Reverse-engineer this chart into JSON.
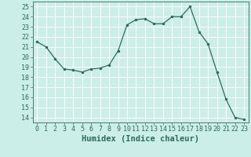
{
  "x": [
    0,
    1,
    2,
    3,
    4,
    5,
    6,
    7,
    8,
    9,
    10,
    11,
    12,
    13,
    14,
    15,
    16,
    17,
    18,
    19,
    20,
    21,
    22,
    23
  ],
  "y": [
    21.5,
    21.0,
    19.8,
    18.8,
    18.7,
    18.5,
    18.8,
    18.9,
    19.2,
    20.6,
    23.2,
    23.7,
    23.8,
    23.3,
    23.3,
    24.0,
    24.0,
    25.0,
    22.5,
    21.3,
    18.5,
    15.8,
    14.0,
    13.8
  ],
  "line_color": "#2e6b5e",
  "marker": ".",
  "marker_size": 3,
  "background_color": "#cceee8",
  "grid_color": "#ffffff",
  "xlabel": "Humidex (Indice chaleur)",
  "ylim": [
    13.5,
    25.5
  ],
  "xlim": [
    -0.5,
    23.5
  ],
  "yticks": [
    14,
    15,
    16,
    17,
    18,
    19,
    20,
    21,
    22,
    23,
    24,
    25
  ],
  "xticks": [
    0,
    1,
    2,
    3,
    4,
    5,
    6,
    7,
    8,
    9,
    10,
    11,
    12,
    13,
    14,
    15,
    16,
    17,
    18,
    19,
    20,
    21,
    22,
    23
  ],
  "tick_color": "#2e6b5e",
  "label_color": "#2e6b5e",
  "xlabel_fontsize": 7.5,
  "tick_fontsize": 6
}
